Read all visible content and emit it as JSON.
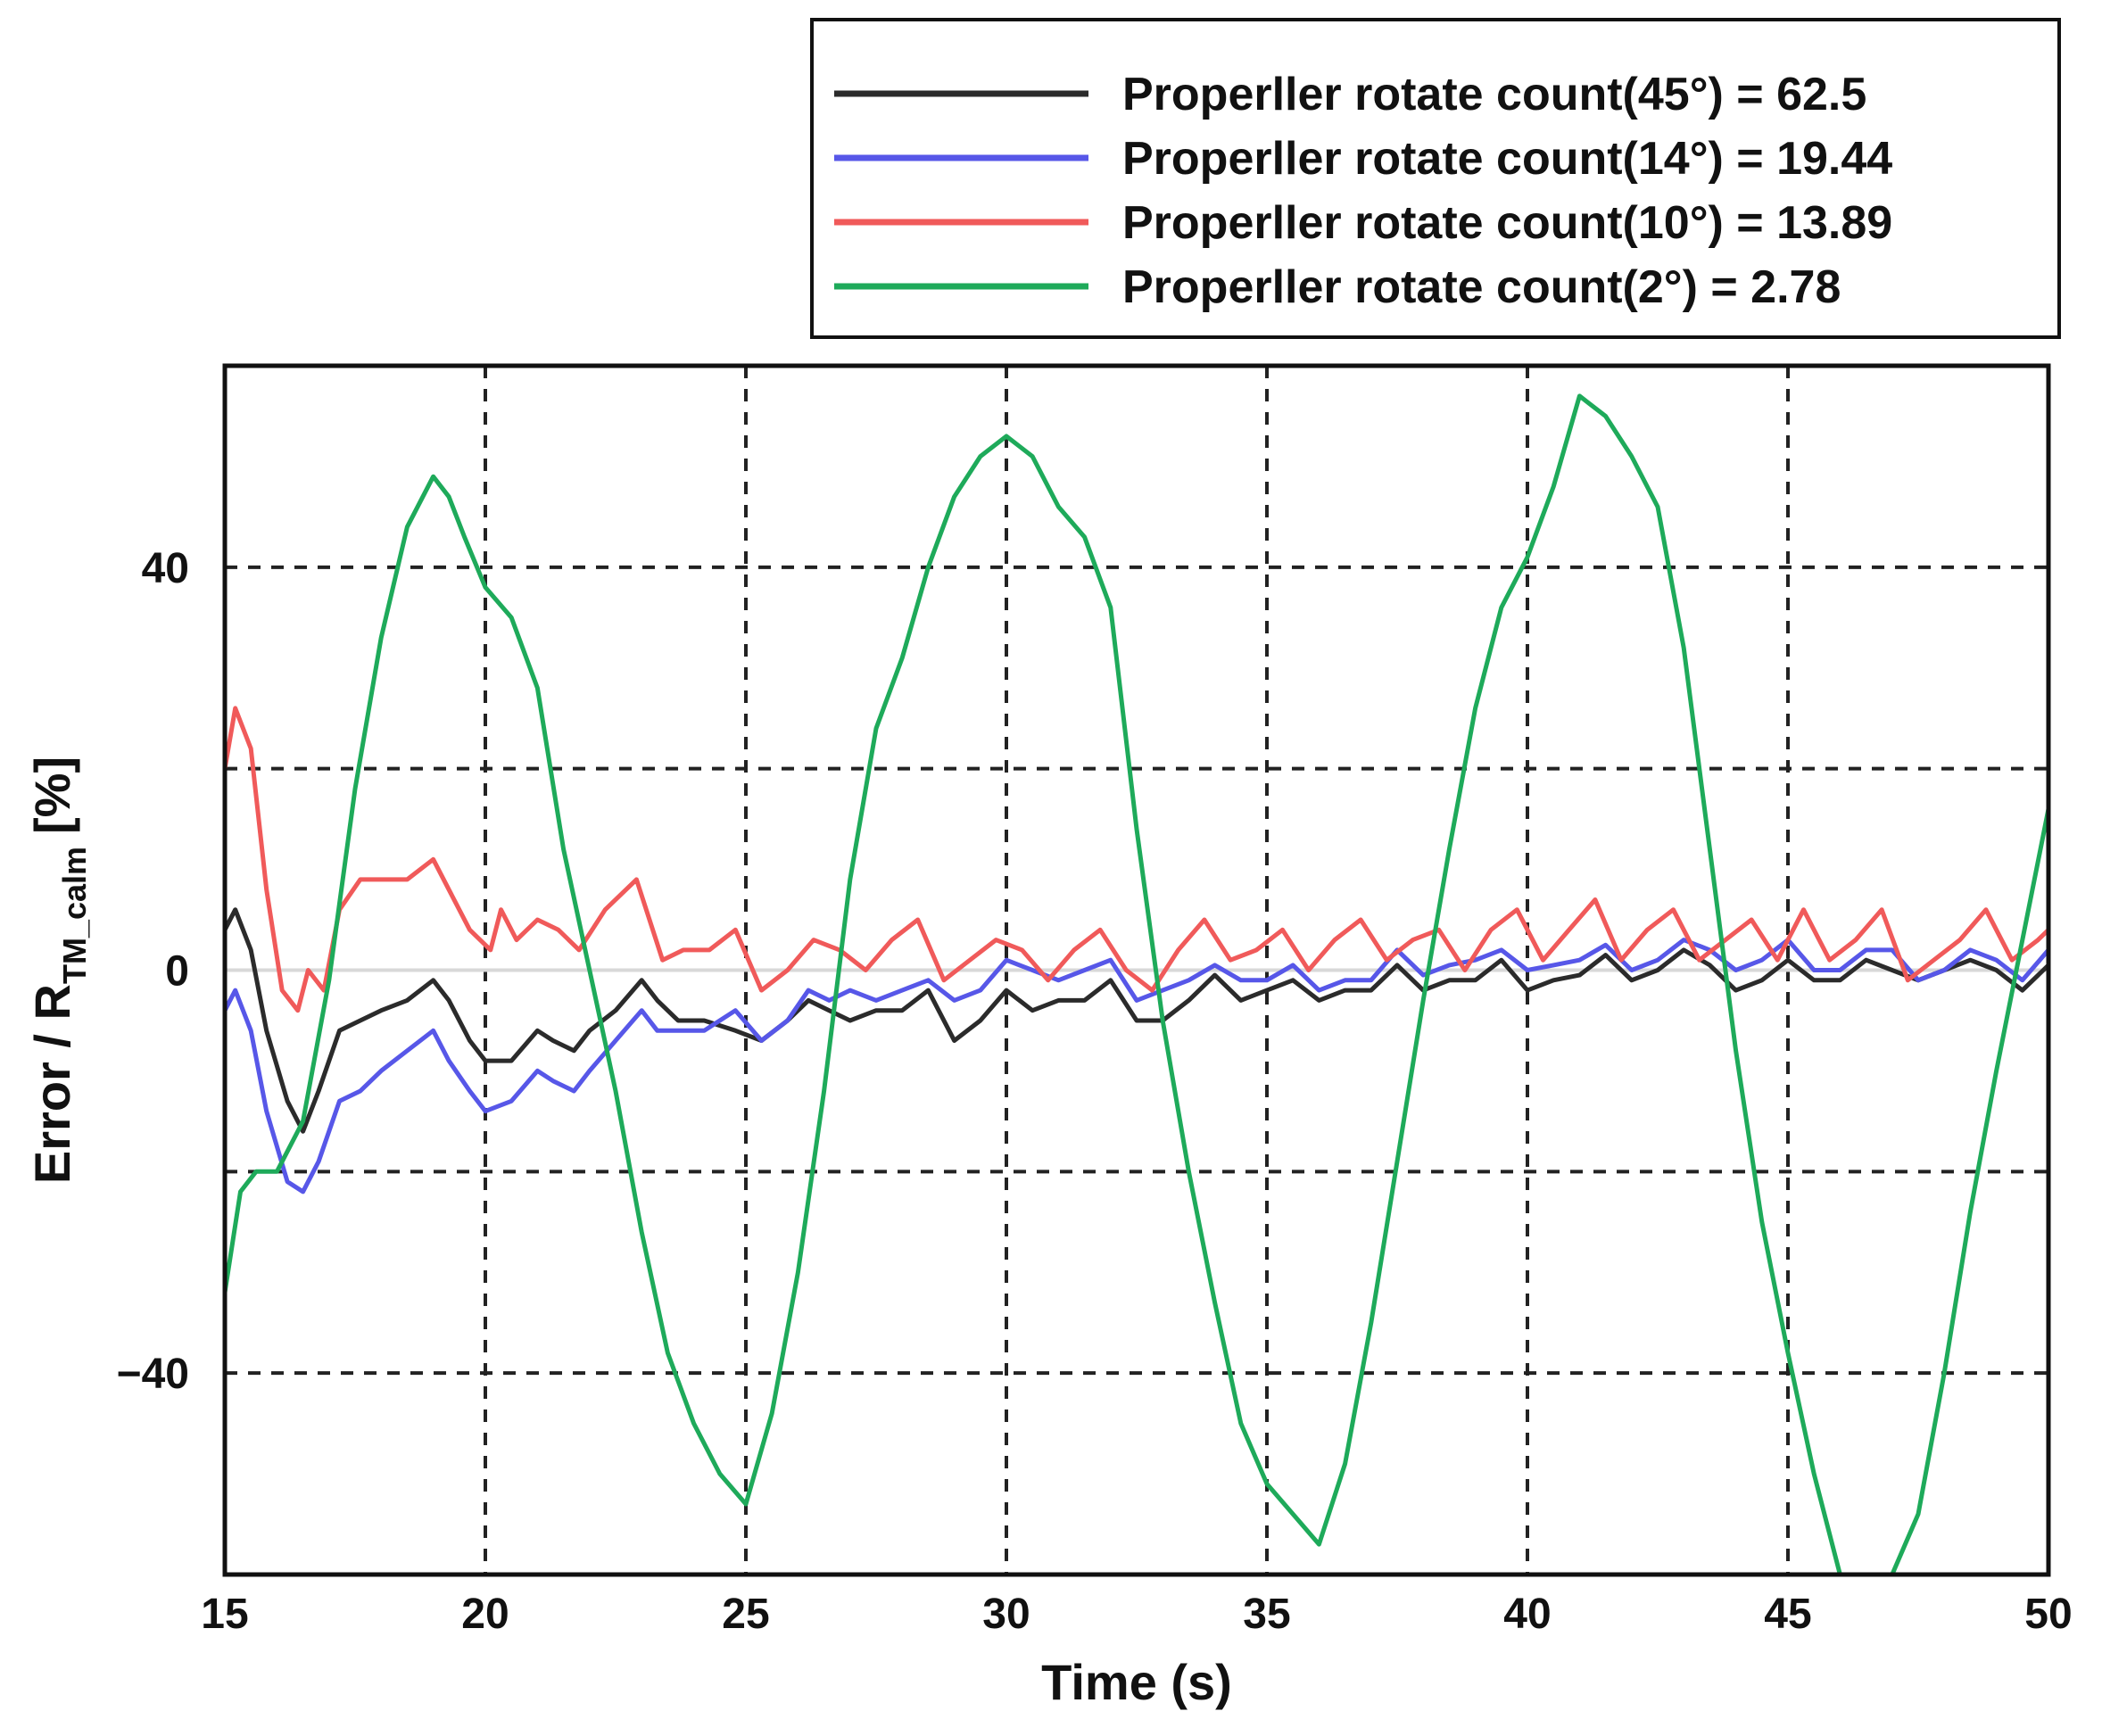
{
  "chart_data": {
    "type": "line",
    "xlabel": "Time (s)",
    "ylabel": {
      "main": "Error / R",
      "subscript": "TM_calm",
      "unit": "[%]"
    },
    "xlim": [
      15,
      50
    ],
    "ylim": [
      -60,
      60
    ],
    "xticks": [
      15,
      20,
      25,
      30,
      35,
      40,
      45,
      50
    ],
    "yticks": [
      40,
      0,
      -40
    ],
    "ytick_labels": [
      "40",
      "0",
      "−40"
    ],
    "grid": true,
    "legend_position": "top-right",
    "series": [
      {
        "name": "Properller rotate count(45°) = 62.5",
        "color": "#2b2b2b",
        "points": [
          [
            15.0,
            4
          ],
          [
            15.2,
            6
          ],
          [
            15.5,
            2
          ],
          [
            15.8,
            -6
          ],
          [
            16.2,
            -13
          ],
          [
            16.5,
            -16
          ],
          [
            16.8,
            -12
          ],
          [
            17.2,
            -6
          ],
          [
            17.6,
            -5
          ],
          [
            18.0,
            -4
          ],
          [
            18.5,
            -3
          ],
          [
            19.0,
            -1
          ],
          [
            19.3,
            -3
          ],
          [
            19.7,
            -7
          ],
          [
            20.0,
            -9
          ],
          [
            20.5,
            -9
          ],
          [
            21.0,
            -6
          ],
          [
            21.3,
            -7
          ],
          [
            21.7,
            -8
          ],
          [
            22.0,
            -6
          ],
          [
            22.5,
            -4
          ],
          [
            23.0,
            -1
          ],
          [
            23.3,
            -3
          ],
          [
            23.7,
            -5
          ],
          [
            24.2,
            -5
          ],
          [
            24.8,
            -6
          ],
          [
            25.3,
            -7
          ],
          [
            25.8,
            -5
          ],
          [
            26.2,
            -3
          ],
          [
            26.6,
            -4
          ],
          [
            27.0,
            -5
          ],
          [
            27.5,
            -4
          ],
          [
            28.0,
            -4
          ],
          [
            28.5,
            -2
          ],
          [
            29.0,
            -7
          ],
          [
            29.5,
            -5
          ],
          [
            30.0,
            -2
          ],
          [
            30.5,
            -4
          ],
          [
            31.0,
            -3
          ],
          [
            31.5,
            -3
          ],
          [
            32.0,
            -1
          ],
          [
            32.5,
            -5
          ],
          [
            33.0,
            -5
          ],
          [
            33.5,
            -3
          ],
          [
            34.0,
            -0.5
          ],
          [
            34.5,
            -3
          ],
          [
            35.0,
            -2
          ],
          [
            35.5,
            -1
          ],
          [
            36.0,
            -3
          ],
          [
            36.5,
            -2
          ],
          [
            37.0,
            -2
          ],
          [
            37.5,
            0.5
          ],
          [
            38.0,
            -2
          ],
          [
            38.5,
            -1
          ],
          [
            39.0,
            -1
          ],
          [
            39.5,
            1
          ],
          [
            40.0,
            -2
          ],
          [
            40.5,
            -1
          ],
          [
            41.0,
            -0.5
          ],
          [
            41.5,
            1.5
          ],
          [
            42.0,
            -1
          ],
          [
            42.5,
            0
          ],
          [
            43.0,
            2
          ],
          [
            43.5,
            0.5
          ],
          [
            44.0,
            -2
          ],
          [
            44.5,
            -1
          ],
          [
            45.0,
            1
          ],
          [
            45.5,
            -1
          ],
          [
            46.0,
            -1
          ],
          [
            46.5,
            1
          ],
          [
            47.0,
            0
          ],
          [
            47.5,
            -1
          ],
          [
            48.0,
            0
          ],
          [
            48.5,
            1
          ],
          [
            49.0,
            0
          ],
          [
            49.5,
            -2
          ],
          [
            50.0,
            0.5
          ]
        ]
      },
      {
        "name": "Properller rotate count(14°) = 19.44",
        "color": "#5757e8",
        "points": [
          [
            15.0,
            -4
          ],
          [
            15.2,
            -2
          ],
          [
            15.5,
            -6
          ],
          [
            15.8,
            -14
          ],
          [
            16.2,
            -21
          ],
          [
            16.5,
            -22
          ],
          [
            16.8,
            -19
          ],
          [
            17.2,
            -13
          ],
          [
            17.6,
            -12
          ],
          [
            18.0,
            -10
          ],
          [
            18.5,
            -8
          ],
          [
            19.0,
            -6
          ],
          [
            19.3,
            -9
          ],
          [
            19.7,
            -12
          ],
          [
            20.0,
            -14
          ],
          [
            20.5,
            -13
          ],
          [
            21.0,
            -10
          ],
          [
            21.3,
            -11
          ],
          [
            21.7,
            -12
          ],
          [
            22.0,
            -10
          ],
          [
            22.5,
            -7
          ],
          [
            23.0,
            -4
          ],
          [
            23.3,
            -6
          ],
          [
            23.7,
            -6
          ],
          [
            24.2,
            -6
          ],
          [
            24.8,
            -4
          ],
          [
            25.3,
            -7
          ],
          [
            25.8,
            -5
          ],
          [
            26.2,
            -2
          ],
          [
            26.6,
            -3
          ],
          [
            27.0,
            -2
          ],
          [
            27.5,
            -3
          ],
          [
            28.0,
            -2
          ],
          [
            28.5,
            -1
          ],
          [
            29.0,
            -3
          ],
          [
            29.5,
            -2
          ],
          [
            30.0,
            1
          ],
          [
            30.5,
            0
          ],
          [
            31.0,
            -1
          ],
          [
            31.5,
            0
          ],
          [
            32.0,
            1
          ],
          [
            32.5,
            -3
          ],
          [
            33.0,
            -2
          ],
          [
            33.5,
            -1
          ],
          [
            34.0,
            0.5
          ],
          [
            34.5,
            -1
          ],
          [
            35.0,
            -1
          ],
          [
            35.5,
            0.5
          ],
          [
            36.0,
            -2
          ],
          [
            36.5,
            -1
          ],
          [
            37.0,
            -1
          ],
          [
            37.5,
            2
          ],
          [
            38.0,
            -0.5
          ],
          [
            38.5,
            0.5
          ],
          [
            39.0,
            1
          ],
          [
            39.5,
            2
          ],
          [
            40.0,
            0
          ],
          [
            40.5,
            0.5
          ],
          [
            41.0,
            1
          ],
          [
            41.5,
            2.5
          ],
          [
            42.0,
            0
          ],
          [
            42.5,
            1
          ],
          [
            43.0,
            3
          ],
          [
            43.5,
            2
          ],
          [
            44.0,
            0
          ],
          [
            44.5,
            1
          ],
          [
            45.0,
            3
          ],
          [
            45.5,
            0
          ],
          [
            46.0,
            0
          ],
          [
            46.5,
            2
          ],
          [
            47.0,
            2
          ],
          [
            47.5,
            -1
          ],
          [
            48.0,
            0
          ],
          [
            48.5,
            2
          ],
          [
            49.0,
            1
          ],
          [
            49.5,
            -1
          ],
          [
            50.0,
            2
          ]
        ]
      },
      {
        "name": "Properller rotate count(10°) = 13.89",
        "color": "#f05a5a",
        "points": [
          [
            15.0,
            20
          ],
          [
            15.2,
            26
          ],
          [
            15.5,
            22
          ],
          [
            15.8,
            8
          ],
          [
            16.1,
            -2
          ],
          [
            16.4,
            -4
          ],
          [
            16.6,
            0
          ],
          [
            16.9,
            -2
          ],
          [
            17.2,
            6
          ],
          [
            17.6,
            9
          ],
          [
            18.0,
            9
          ],
          [
            18.5,
            9
          ],
          [
            19.0,
            11
          ],
          [
            19.3,
            8
          ],
          [
            19.7,
            4
          ],
          [
            20.1,
            2
          ],
          [
            20.3,
            6
          ],
          [
            20.6,
            3
          ],
          [
            21.0,
            5
          ],
          [
            21.4,
            4
          ],
          [
            21.8,
            2
          ],
          [
            22.3,
            6
          ],
          [
            22.9,
            9
          ],
          [
            23.4,
            1
          ],
          [
            23.8,
            2
          ],
          [
            24.3,
            2
          ],
          [
            24.8,
            4
          ],
          [
            25.3,
            -2
          ],
          [
            25.8,
            0
          ],
          [
            26.3,
            3
          ],
          [
            26.8,
            2
          ],
          [
            27.3,
            0
          ],
          [
            27.8,
            3
          ],
          [
            28.3,
            5
          ],
          [
            28.8,
            -1
          ],
          [
            29.3,
            1
          ],
          [
            29.8,
            3
          ],
          [
            30.3,
            2
          ],
          [
            30.8,
            -1
          ],
          [
            31.3,
            2
          ],
          [
            31.8,
            4
          ],
          [
            32.3,
            0
          ],
          [
            32.8,
            -2
          ],
          [
            33.3,
            2
          ],
          [
            33.8,
            5
          ],
          [
            34.3,
            1
          ],
          [
            34.8,
            2
          ],
          [
            35.3,
            4
          ],
          [
            35.8,
            0
          ],
          [
            36.3,
            3
          ],
          [
            36.8,
            5
          ],
          [
            37.3,
            1
          ],
          [
            37.8,
            3
          ],
          [
            38.3,
            4
          ],
          [
            38.8,
            0
          ],
          [
            39.3,
            4
          ],
          [
            39.8,
            6
          ],
          [
            40.3,
            1
          ],
          [
            40.8,
            4
          ],
          [
            41.3,
            7
          ],
          [
            41.8,
            1
          ],
          [
            42.3,
            4
          ],
          [
            42.8,
            6
          ],
          [
            43.3,
            1
          ],
          [
            43.8,
            3
          ],
          [
            44.3,
            5
          ],
          [
            44.8,
            1
          ],
          [
            45.3,
            6
          ],
          [
            45.8,
            1
          ],
          [
            46.3,
            3
          ],
          [
            46.8,
            6
          ],
          [
            47.3,
            -1
          ],
          [
            47.8,
            1
          ],
          [
            48.3,
            3
          ],
          [
            48.8,
            6
          ],
          [
            49.3,
            1
          ],
          [
            49.8,
            3
          ],
          [
            50.0,
            4
          ]
        ]
      },
      {
        "name": "Properller rotate count(2°) = 2.78",
        "color": "#1eaa5a",
        "points": [
          [
            15.0,
            -32
          ],
          [
            15.3,
            -22
          ],
          [
            15.6,
            -20
          ],
          [
            16.0,
            -20
          ],
          [
            16.5,
            -15
          ],
          [
            17.0,
            -1
          ],
          [
            17.5,
            18
          ],
          [
            18.0,
            33
          ],
          [
            18.5,
            44
          ],
          [
            19.0,
            49
          ],
          [
            19.3,
            47
          ],
          [
            19.6,
            43
          ],
          [
            20.0,
            38
          ],
          [
            20.5,
            35
          ],
          [
            21.0,
            28
          ],
          [
            21.5,
            12
          ],
          [
            22.0,
            0
          ],
          [
            22.5,
            -12
          ],
          [
            23.0,
            -26
          ],
          [
            23.5,
            -38
          ],
          [
            24.0,
            -45
          ],
          [
            24.5,
            -50
          ],
          [
            25.0,
            -53
          ],
          [
            25.5,
            -44
          ],
          [
            26.0,
            -30
          ],
          [
            26.5,
            -12
          ],
          [
            27.0,
            9
          ],
          [
            27.5,
            24
          ],
          [
            28.0,
            31
          ],
          [
            28.5,
            40
          ],
          [
            29.0,
            47
          ],
          [
            29.5,
            51
          ],
          [
            30.0,
            53
          ],
          [
            30.5,
            51
          ],
          [
            31.0,
            46
          ],
          [
            31.5,
            43
          ],
          [
            32.0,
            36
          ],
          [
            32.5,
            14
          ],
          [
            33.0,
            -5
          ],
          [
            33.5,
            -20
          ],
          [
            34.0,
            -33
          ],
          [
            34.5,
            -45
          ],
          [
            35.0,
            -51
          ],
          [
            35.5,
            -54
          ],
          [
            36.0,
            -57
          ],
          [
            36.5,
            -49
          ],
          [
            37.0,
            -35
          ],
          [
            37.5,
            -19
          ],
          [
            38.0,
            -3
          ],
          [
            38.5,
            12
          ],
          [
            39.0,
            26
          ],
          [
            39.5,
            36
          ],
          [
            40.0,
            41
          ],
          [
            40.5,
            48
          ],
          [
            41.0,
            57
          ],
          [
            41.5,
            55
          ],
          [
            42.0,
            51
          ],
          [
            42.5,
            46
          ],
          [
            43.0,
            32
          ],
          [
            43.5,
            12
          ],
          [
            44.0,
            -8
          ],
          [
            44.5,
            -25
          ],
          [
            45.0,
            -38
          ],
          [
            45.5,
            -50
          ],
          [
            46.0,
            -60
          ],
          [
            47.0,
            -60
          ],
          [
            47.5,
            -54
          ],
          [
            48.0,
            -40
          ],
          [
            48.5,
            -24
          ],
          [
            49.0,
            -10
          ],
          [
            49.5,
            3
          ],
          [
            50.0,
            16
          ]
        ]
      }
    ]
  }
}
